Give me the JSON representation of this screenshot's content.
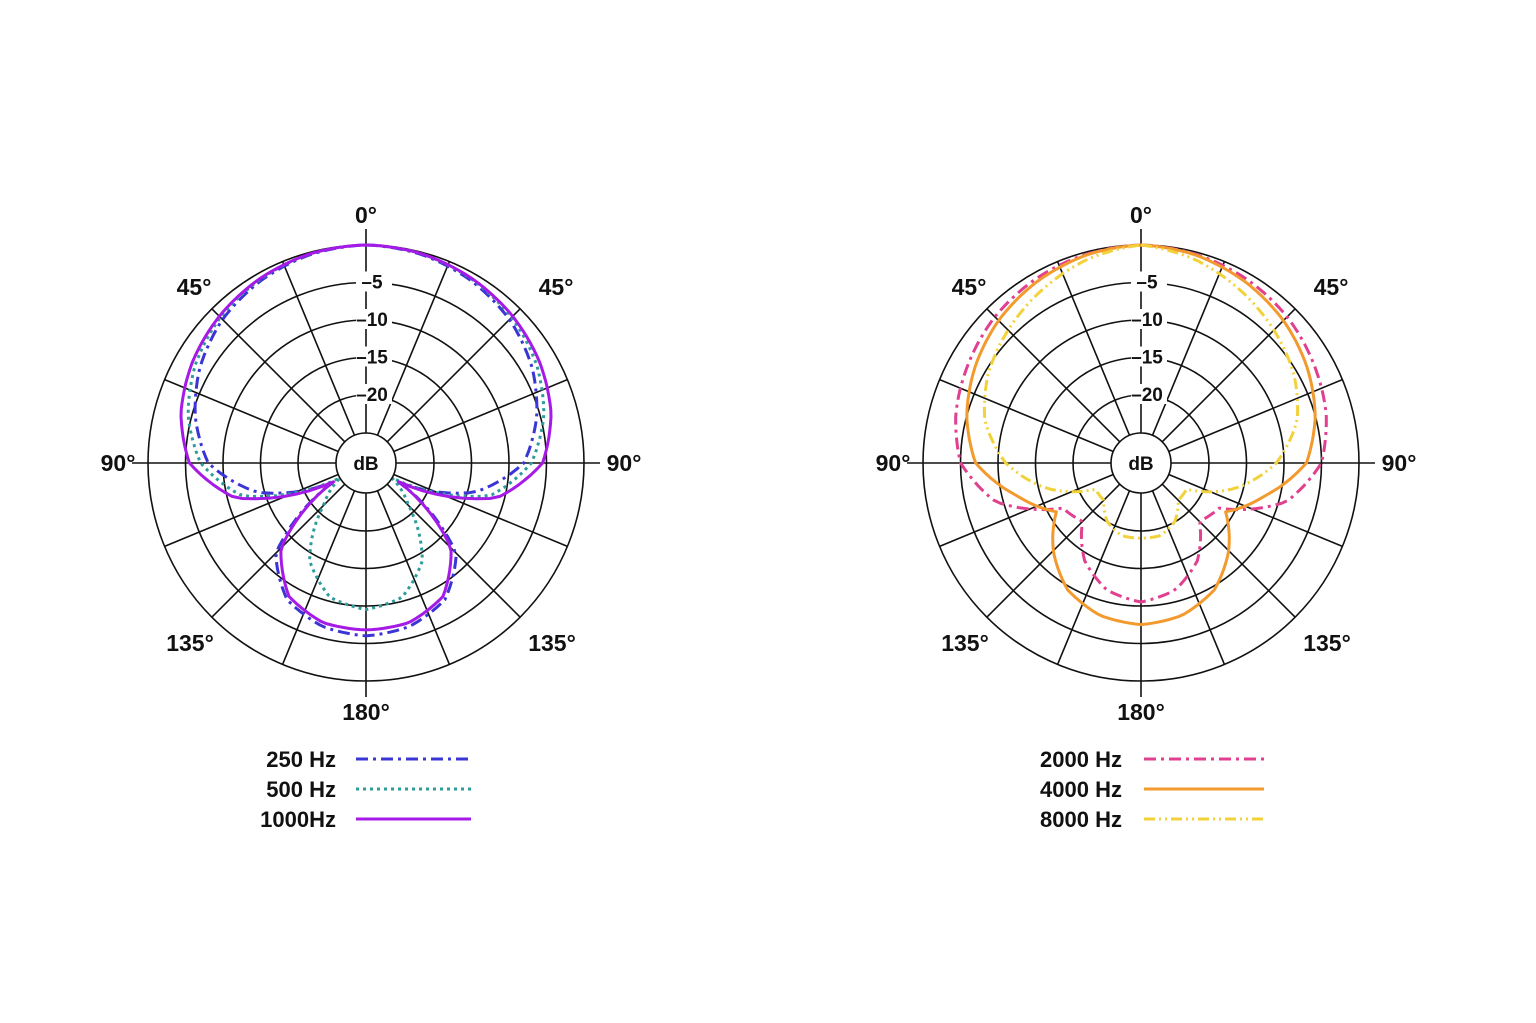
{
  "chart_data": [
    {
      "type": "polar",
      "title": "",
      "radial_unit_label": "dB",
      "radial_tick_labels": [
        "-5",
        "-10",
        "-15",
        "-20"
      ],
      "radial_range_db": [
        -25,
        0
      ],
      "angle_labels": {
        "front": "0°",
        "front_left": "45°",
        "front_right": "45°",
        "left": "90°",
        "right": "90°",
        "back_left": "135°",
        "back_right": "135°",
        "back": "180°"
      },
      "series": [
        {
          "name": "250 Hz",
          "color": "#3b35d6",
          "dash": "dashdot",
          "angles_deg": [
            0,
            15,
            30,
            45,
            60,
            75,
            90,
            105,
            120,
            135,
            150,
            165,
            180
          ],
          "values_db": [
            0,
            -0.3,
            -1,
            -2,
            -3.5,
            -5.5,
            -8,
            -14,
            -24,
            -12,
            -8,
            -6.5,
            -6
          ]
        },
        {
          "name": "500 Hz",
          "color": "#2e9c9a",
          "dash": "dotted",
          "angles_deg": [
            0,
            15,
            30,
            45,
            60,
            75,
            90,
            105,
            120,
            135,
            150,
            165,
            180
          ],
          "values_db": [
            0,
            -0.2,
            -0.8,
            -1.6,
            -2.8,
            -4.5,
            -7,
            -12,
            -25,
            -21,
            -14,
            -10.5,
            -9.5
          ]
        },
        {
          "name": "1000Hz",
          "color": "#a51ae6",
          "dash": "solid",
          "angles_deg": [
            0,
            15,
            30,
            45,
            60,
            75,
            90,
            105,
            120,
            135,
            150,
            165,
            180
          ],
          "values_db": [
            0,
            -0.2,
            -0.7,
            -1.4,
            -2.3,
            -3.5,
            -5.5,
            -11,
            -24,
            -13,
            -8.5,
            -7,
            -6.8
          ]
        }
      ]
    },
    {
      "type": "polar",
      "title": "",
      "radial_unit_label": "dB",
      "radial_tick_labels": [
        "-5",
        "-10",
        "-15",
        "-20"
      ],
      "radial_range_db": [
        -25,
        0
      ],
      "angle_labels": {
        "front": "0°",
        "front_left": "45°",
        "front_right": "45°",
        "left": "90°",
        "right": "90°",
        "back_left": "135°",
        "back_right": "135°",
        "back": "180°"
      },
      "series": [
        {
          "name": "2000 Hz",
          "color": "#e0408f",
          "dash": "dashdot",
          "angles_deg": [
            0,
            15,
            30,
            45,
            60,
            75,
            90,
            105,
            120,
            135,
            150,
            165,
            180
          ],
          "values_db": [
            0,
            -0.3,
            -0.8,
            -1.5,
            -2.5,
            -3.5,
            -5,
            -9,
            -17,
            -18,
            -14,
            -11.5,
            -10.5
          ]
        },
        {
          "name": "4000 Hz",
          "color": "#f39a2e",
          "dash": "solid",
          "angles_deg": [
            0,
            15,
            30,
            45,
            60,
            75,
            90,
            105,
            120,
            135,
            150,
            165,
            180
          ],
          "values_db": [
            0,
            -0.4,
            -1.2,
            -2.2,
            -3.5,
            -5,
            -7,
            -12,
            -16,
            -12.5,
            -9.5,
            -8,
            -7.5
          ]
        },
        {
          "name": "8000 Hz",
          "color": "#f2d23a",
          "dash": "dashdotdot",
          "angles_deg": [
            0,
            15,
            30,
            45,
            60,
            75,
            90,
            105,
            120,
            135,
            150,
            165,
            180
          ],
          "values_db": [
            0,
            -1,
            -2.5,
            -4,
            -5.5,
            -7.5,
            -11,
            -16,
            -22,
            -22,
            -20,
            -19,
            -19
          ]
        }
      ]
    }
  ]
}
